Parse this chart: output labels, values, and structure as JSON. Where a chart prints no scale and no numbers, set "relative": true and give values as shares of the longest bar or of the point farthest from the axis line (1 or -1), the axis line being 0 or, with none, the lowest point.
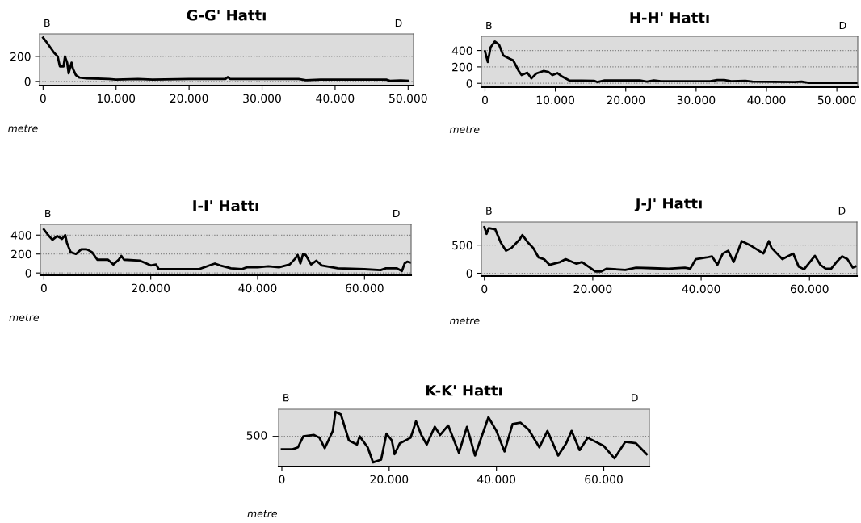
{
  "chart_data": [
    {
      "type": "line",
      "title": "G-G' Hattı",
      "xlabel": "metre",
      "annotations": [
        "B",
        "D"
      ],
      "grid": "y",
      "xlim": [
        -480,
        50740
      ],
      "ylim": [
        -33,
        380
      ],
      "xticks": [
        0,
        {
          "value": 10000,
          "label": "10.000"
        },
        {
          "value": 20000,
          "label": "20.000"
        },
        {
          "value": 30000,
          "label": "30.000"
        },
        {
          "value": 40000,
          "label": "40.000"
        },
        {
          "value": 50000,
          "label": "50.000"
        }
      ],
      "yticks": [
        0,
        200
      ],
      "series": [
        {
          "color": "#000000",
          "x": [
            0,
            400,
            1500,
            2000,
            2300,
            2800,
            3000,
            3300,
            3500,
            3900,
            4100,
            4500,
            5000,
            6000,
            9000,
            10000,
            13000,
            15000,
            20000,
            25000,
            25300,
            25600,
            35000,
            36000,
            38000,
            40000,
            47000,
            47500,
            49000,
            50000
          ],
          "values": [
            350,
            320,
            230,
            200,
            120,
            120,
            200,
            150,
            65,
            150,
            100,
            50,
            30,
            25,
            20,
            15,
            20,
            15,
            20,
            20,
            35,
            20,
            20,
            10,
            15,
            15,
            15,
            5,
            8,
            5
          ]
        }
      ]
    },
    {
      "type": "line",
      "title": "H-H' Hattı",
      "xlabel": "metre",
      "annotations": [
        "B",
        "D"
      ],
      "grid": "y",
      "xlim": [
        -515,
        52970
      ],
      "ylim": [
        -47,
        573
      ],
      "xticks": [
        0,
        {
          "value": 10000,
          "label": "10.000"
        },
        {
          "value": 20000,
          "label": "20.000"
        },
        {
          "value": 30000,
          "label": "30.000"
        },
        {
          "value": 40000,
          "label": "40.000"
        },
        {
          "value": 50000,
          "label": "50.000"
        }
      ],
      "yticks": [
        0,
        200,
        400
      ],
      "series": [
        {
          "color": "#000000",
          "x": [
            0,
            400,
            800,
            1400,
            2000,
            2600,
            3500,
            4000,
            4800,
            5200,
            6000,
            6600,
            7300,
            8300,
            9000,
            9600,
            10300,
            11000,
            12000,
            15500,
            16000,
            17000,
            22000,
            23000,
            24000,
            25000,
            32000,
            33000,
            34000,
            35000,
            37000,
            38000,
            44000,
            45000,
            46000,
            52900
          ],
          "values": [
            390,
            260,
            440,
            510,
            470,
            340,
            300,
            280,
            150,
            100,
            130,
            60,
            120,
            150,
            140,
            100,
            125,
            80,
            35,
            30,
            15,
            35,
            35,
            20,
            35,
            25,
            25,
            40,
            40,
            25,
            30,
            20,
            15,
            20,
            5,
            5
          ]
        }
      ]
    },
    {
      "type": "line",
      "title": "I-I' Hattı",
      "xlabel": "metre",
      "annotations": [
        "B",
        "D"
      ],
      "grid": "y",
      "xlim": [
        -660,
        68720
      ],
      "ylim": [
        -24,
        513
      ],
      "xticks": [
        0,
        {
          "value": 20000,
          "label": "20.000"
        },
        {
          "value": 40000,
          "label": "40.000"
        },
        {
          "value": 60000,
          "label": "60.000"
        }
      ],
      "yticks": [
        0,
        200,
        400
      ],
      "series": [
        {
          "color": "#000000",
          "x": [
            0,
            800,
            1600,
            2500,
            3400,
            4000,
            4300,
            5000,
            6000,
            7000,
            8000,
            9000,
            10000,
            12000,
            13000,
            14000,
            14500,
            15000,
            18000,
            20000,
            21000,
            21500,
            25000,
            29000,
            31000,
            32000,
            33000,
            35000,
            37000,
            38000,
            40000,
            42000,
            44000,
            46000,
            47000,
            47500,
            48000,
            48500,
            49000,
            50000,
            51000,
            52000,
            55000,
            60000,
            63000,
            64000,
            66000,
            67000,
            67500,
            68000,
            68700
          ],
          "values": [
            460,
            400,
            350,
            390,
            360,
            400,
            320,
            220,
            200,
            250,
            250,
            220,
            140,
            140,
            90,
            140,
            180,
            140,
            130,
            80,
            90,
            40,
            40,
            40,
            80,
            100,
            80,
            50,
            40,
            60,
            60,
            70,
            60,
            90,
            150,
            190,
            100,
            200,
            190,
            90,
            130,
            80,
            50,
            40,
            30,
            50,
            50,
            20,
            100,
            120,
            110
          ]
        }
      ]
    },
    {
      "type": "line",
      "title": "J-J' Hattı",
      "xlabel": "metre",
      "annotations": [
        "B",
        "D"
      ],
      "grid": "y",
      "xlim": [
        -560,
        68760
      ],
      "ylim": [
        -50,
        911
      ],
      "xticks": [
        0,
        {
          "value": 20000,
          "label": "20.000"
        },
        {
          "value": 40000,
          "label": "40.000"
        },
        {
          "value": 60000,
          "label": "60.000"
        }
      ],
      "yticks": [
        0,
        500
      ],
      "series": [
        {
          "color": "#000000",
          "x": [
            0,
            400,
            800,
            2000,
            3000,
            4000,
            5000,
            6500,
            7000,
            8000,
            9000,
            10000,
            11000,
            12000,
            14000,
            15000,
            17000,
            18000,
            19500,
            20500,
            21500,
            22500,
            26000,
            28000,
            31000,
            34000,
            37000,
            38000,
            39000,
            41000,
            42000,
            43000,
            44000,
            45000,
            46000,
            47500,
            49000,
            51500,
            52500,
            53000,
            54000,
            55000,
            56000,
            57000,
            58000,
            59000,
            61000,
            62000,
            63000,
            64000,
            65000,
            66000,
            67000,
            68000,
            68500
          ],
          "values": [
            820,
            700,
            800,
            780,
            550,
            400,
            450,
            600,
            680,
            550,
            450,
            280,
            250,
            150,
            200,
            250,
            170,
            200,
            100,
            30,
            30,
            80,
            60,
            100,
            90,
            80,
            100,
            80,
            250,
            280,
            300,
            150,
            350,
            400,
            200,
            570,
            500,
            350,
            570,
            450,
            350,
            250,
            300,
            350,
            120,
            70,
            310,
            150,
            80,
            80,
            200,
            300,
            250,
            100,
            120
          ]
        }
      ]
    },
    {
      "type": "line",
      "title": "K-K' Hattı",
      "xlabel": "metre",
      "annotations": [
        "B",
        "D",
        "500"
      ],
      "relative": true,
      "xlim": [
        -600,
        68500
      ],
      "xticks": [
        0,
        {
          "value": 20000,
          "label": "20.000"
        },
        {
          "value": 40000,
          "label": "40.000"
        },
        {
          "value": 60000,
          "label": "60.000"
        }
      ],
      "ref_lines": [
        {
          "axis": "y",
          "value": 0.55,
          "line_style": "dotted",
          "color": "#808080"
        }
      ],
      "series": [
        {
          "color": "#000000",
          "x": [
            0,
            2000,
            3000,
            4000,
            6000,
            7000,
            8000,
            9500,
            10000,
            11000,
            12500,
            14000,
            14500,
            16000,
            17000,
            18500,
            19500,
            20500,
            21000,
            22000,
            24000,
            25000,
            26000,
            27000,
            28500,
            29500,
            31000,
            33000,
            34500,
            36000,
            38500,
            40000,
            41500,
            43000,
            44500,
            46000,
            48000,
            49500,
            51500,
            53000,
            54000,
            55500,
            57000,
            60000,
            62000,
            64000,
            66000,
            68000
          ],
          "values": [
            0.315,
            0.315,
            0.35,
            0.55,
            0.575,
            0.525,
            0.335,
            0.65,
            1.0,
            0.95,
            0.475,
            0.4,
            0.55,
            0.35,
            0.075,
            0.125,
            0.6,
            0.475,
            0.225,
            0.425,
            0.525,
            0.825,
            0.575,
            0.4,
            0.725,
            0.575,
            0.75,
            0.25,
            0.725,
            0.2,
            0.9,
            0.65,
            0.275,
            0.775,
            0.8,
            0.675,
            0.35,
            0.65,
            0.2,
            0.425,
            0.65,
            0.3,
            0.525,
            0.375,
            0.15,
            0.45,
            0.425,
            0.225
          ]
        }
      ]
    }
  ]
}
